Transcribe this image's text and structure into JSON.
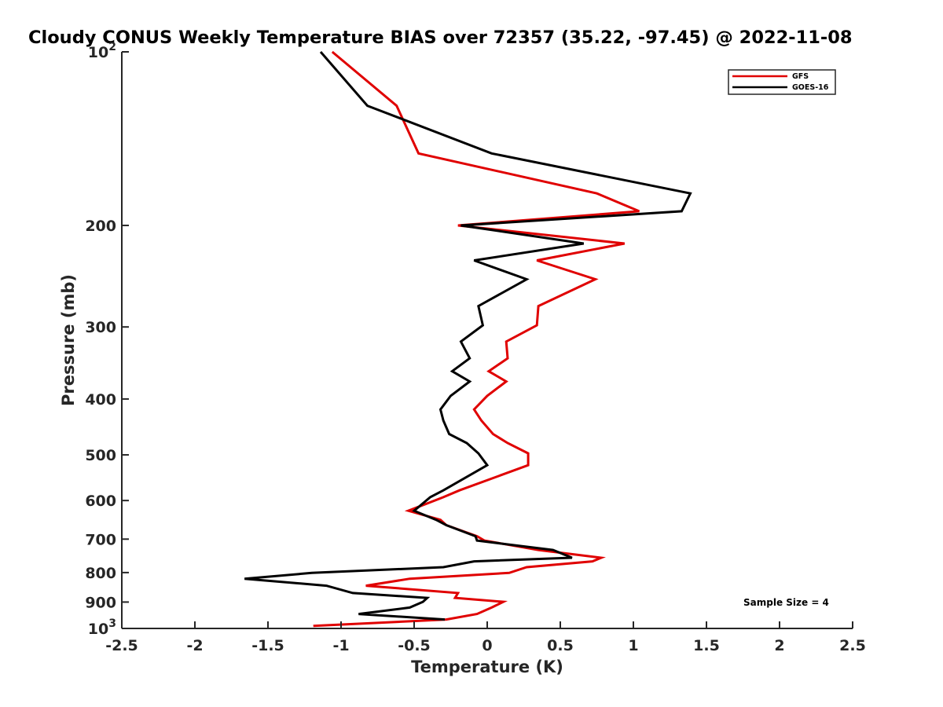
{
  "chart_data": {
    "type": "line",
    "title": "Cloudy CONUS Weekly Temperature BIAS over 72357 (35.22, -97.45) @ 2022-11-08",
    "xlabel": "Temperature (K)",
    "ylabel": "Pressure (mb)",
    "xlim": [
      -2.5,
      2.5
    ],
    "ylim": [
      100,
      1000
    ],
    "y_scale": "log",
    "y_reversed": true,
    "grid": false,
    "x_ticks": [
      {
        "value": -2.5,
        "label": "-2.5"
      },
      {
        "value": -2,
        "label": "-2"
      },
      {
        "value": -1.5,
        "label": "-1.5"
      },
      {
        "value": -1,
        "label": "-1"
      },
      {
        "value": -0.5,
        "label": "-0.5"
      },
      {
        "value": 0,
        "label": "0"
      },
      {
        "value": 0.5,
        "label": "0.5"
      },
      {
        "value": 1,
        "label": "1"
      },
      {
        "value": 1.5,
        "label": "1.5"
      },
      {
        "value": 2,
        "label": "2"
      },
      {
        "value": 2.5,
        "label": "2.5"
      }
    ],
    "y_ticks": [
      {
        "value": 100,
        "label": "10",
        "sup": "2"
      },
      {
        "value": 200,
        "label": "200",
        "sup": ""
      },
      {
        "value": 300,
        "label": "300",
        "sup": ""
      },
      {
        "value": 400,
        "label": "400",
        "sup": ""
      },
      {
        "value": 500,
        "label": "500",
        "sup": ""
      },
      {
        "value": 600,
        "label": "600",
        "sup": ""
      },
      {
        "value": 700,
        "label": "700",
        "sup": ""
      },
      {
        "value": 800,
        "label": "800",
        "sup": ""
      },
      {
        "value": 900,
        "label": "900",
        "sup": ""
      },
      {
        "value": 1000,
        "label": "10",
        "sup": "3"
      }
    ],
    "legend_position": "top-right",
    "series": [
      {
        "name": "GFS",
        "color": "#e00000",
        "points": [
          [
            -1.06,
            100
          ],
          [
            -0.62,
            124
          ],
          [
            -0.47,
            150
          ],
          [
            0.75,
            176
          ],
          [
            1.04,
            189
          ],
          [
            -0.2,
            200
          ],
          [
            0.94,
            215
          ],
          [
            0.34,
            230
          ],
          [
            0.74,
            248
          ],
          [
            0.35,
            276
          ],
          [
            0.34,
            298
          ],
          [
            0.13,
            318
          ],
          [
            0.14,
            340
          ],
          [
            0.01,
            358
          ],
          [
            0.13,
            373
          ],
          [
            0.0,
            395
          ],
          [
            -0.09,
            417
          ],
          [
            -0.04,
            436
          ],
          [
            0.04,
            460
          ],
          [
            0.14,
            477
          ],
          [
            0.28,
            497
          ],
          [
            0.28,
            521
          ],
          [
            -0.19,
            576
          ],
          [
            -0.3,
            592
          ],
          [
            -0.54,
            625
          ],
          [
            -0.32,
            648
          ],
          [
            -0.28,
            662
          ],
          [
            -0.07,
            692
          ],
          [
            -0.02,
            704
          ],
          [
            0.35,
            731
          ],
          [
            0.78,
            754
          ],
          [
            0.72,
            765
          ],
          [
            0.27,
            783
          ],
          [
            0.15,
            801
          ],
          [
            -0.53,
            820
          ],
          [
            -0.83,
            843
          ],
          [
            -0.2,
            868
          ],
          [
            -0.22,
            885
          ],
          [
            0.11,
            899
          ],
          [
            0.03,
            920
          ],
          [
            -0.07,
            944
          ],
          [
            -0.28,
            965
          ],
          [
            -1.19,
            990
          ]
        ]
      },
      {
        "name": "GOES-16",
        "color": "#000000",
        "points": [
          [
            -1.14,
            100
          ],
          [
            -0.82,
            124
          ],
          [
            0.03,
            150
          ],
          [
            1.39,
            176
          ],
          [
            1.33,
            189
          ],
          [
            -0.18,
            200
          ],
          [
            0.66,
            215
          ],
          [
            -0.09,
            230
          ],
          [
            0.27,
            248
          ],
          [
            -0.06,
            276
          ],
          [
            -0.03,
            298
          ],
          [
            -0.18,
            318
          ],
          [
            -0.12,
            340
          ],
          [
            -0.24,
            358
          ],
          [
            -0.12,
            373
          ],
          [
            -0.25,
            395
          ],
          [
            -0.32,
            417
          ],
          [
            -0.3,
            436
          ],
          [
            -0.26,
            460
          ],
          [
            -0.14,
            477
          ],
          [
            -0.06,
            497
          ],
          [
            0.0,
            521
          ],
          [
            -0.3,
            576
          ],
          [
            -0.39,
            592
          ],
          [
            -0.5,
            625
          ],
          [
            -0.35,
            648
          ],
          [
            -0.28,
            662
          ],
          [
            -0.08,
            692
          ],
          [
            -0.07,
            704
          ],
          [
            0.45,
            731
          ],
          [
            0.58,
            754
          ],
          [
            -0.09,
            765
          ],
          [
            -0.3,
            783
          ],
          [
            -1.2,
            801
          ],
          [
            -1.66,
            820
          ],
          [
            -1.1,
            843
          ],
          [
            -0.92,
            868
          ],
          [
            -0.41,
            885
          ],
          [
            -0.44,
            899
          ],
          [
            -0.53,
            920
          ],
          [
            -0.88,
            944
          ],
          [
            -0.29,
            965
          ]
        ]
      }
    ],
    "annotation": "Sample Size = 4"
  }
}
